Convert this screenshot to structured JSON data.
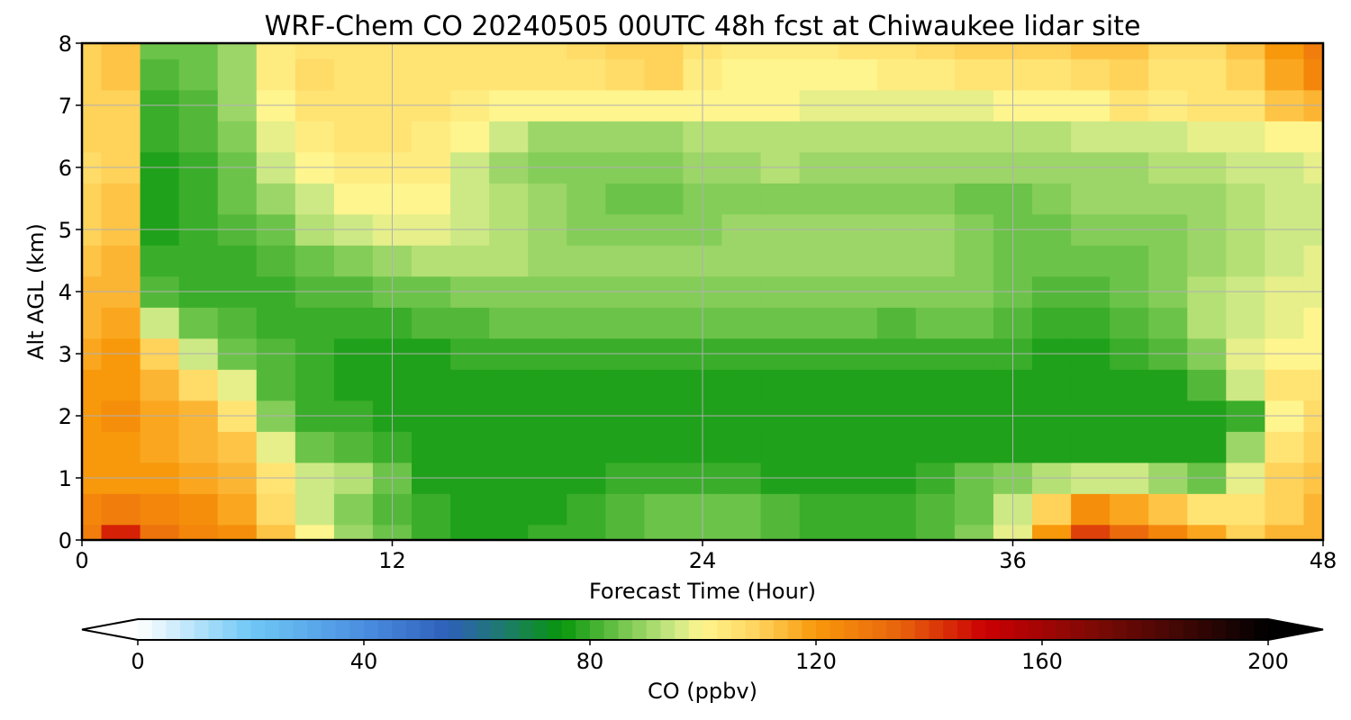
{
  "chart_data": {
    "type": "heatmap",
    "title": "WRF-Chem CO  20240505 00UTC 48h fcst at Chiwaukee lidar site",
    "xlabel": "Forecast Time (Hour)",
    "ylabel": "Alt AGL (km)",
    "xlim": [
      0,
      48
    ],
    "ylim": [
      0,
      8
    ],
    "xticks": [
      0,
      12,
      24,
      36,
      48
    ],
    "yticks": [
      0,
      1,
      2,
      3,
      4,
      5,
      6,
      7,
      8
    ],
    "grid": true,
    "x": [
      0,
      1.5,
      3,
      4.5,
      6,
      7.5,
      9,
      10.5,
      12,
      13.5,
      15,
      16.5,
      18,
      19.5,
      21,
      22.5,
      24,
      25.5,
      27,
      28.5,
      30,
      31.5,
      33,
      34.5,
      36,
      37.5,
      39,
      40.5,
      42,
      43.5,
      45,
      46.5,
      48
    ],
    "y": [
      0,
      0.5,
      1,
      1.5,
      2,
      2.5,
      3,
      3.5,
      4,
      4.5,
      5,
      5.5,
      6,
      6.5,
      7,
      7.5,
      8
    ],
    "values": [
      [
        128,
        145,
        130,
        125,
        122,
        112,
        100,
        90,
        84,
        80,
        78,
        77,
        79,
        80,
        82,
        84,
        85,
        84,
        82,
        80,
        79,
        80,
        83,
        88,
        98,
        120,
        140,
        132,
        124,
        118,
        110,
        114,
        116
      ],
      [
        124,
        128,
        125,
        122,
        118,
        108,
        96,
        88,
        82,
        79,
        77,
        77,
        78,
        80,
        82,
        84,
        85,
        84,
        82,
        80,
        79,
        79,
        82,
        86,
        94,
        110,
        122,
        118,
        112,
        105,
        104,
        110,
        114
      ],
      [
        120,
        121,
        120,
        118,
        114,
        104,
        96,
        92,
        84,
        78,
        77,
        77,
        77,
        78,
        79,
        80,
        80,
        79,
        78,
        77,
        77,
        78,
        80,
        84,
        88,
        92,
        95,
        94,
        90,
        86,
        98,
        110,
        112
      ],
      [
        120,
        121,
        118,
        116,
        112,
        98,
        86,
        82,
        80,
        78,
        77,
        77,
        77,
        77,
        77,
        77,
        77,
        77,
        77,
        77,
        77,
        77,
        77,
        78,
        78,
        78,
        78,
        78,
        78,
        78,
        90,
        106,
        110
      ],
      [
        120,
        122,
        118,
        114,
        106,
        88,
        80,
        79,
        78,
        77,
        77,
        77,
        77,
        77,
        77,
        77,
        77,
        77,
        77,
        77,
        77,
        77,
        77,
        77,
        77,
        77,
        77,
        77,
        77,
        78,
        80,
        100,
        108
      ],
      [
        119,
        121,
        116,
        108,
        98,
        83,
        79,
        78,
        77,
        77,
        77,
        77,
        77,
        77,
        77,
        77,
        77,
        77,
        77,
        77,
        77,
        77,
        77,
        77,
        77,
        77,
        77,
        77,
        78,
        82,
        94,
        104,
        104
      ],
      [
        118,
        120,
        110,
        96,
        86,
        82,
        79,
        78,
        77,
        78,
        79,
        80,
        80,
        80,
        80,
        80,
        80,
        80,
        80,
        80,
        80,
        80,
        80,
        80,
        79,
        78,
        78,
        79,
        82,
        88,
        97,
        100,
        101
      ],
      [
        116,
        118,
        94,
        84,
        82,
        80,
        79,
        79,
        80,
        82,
        83,
        84,
        84,
        84,
        84,
        84,
        84,
        84,
        84,
        84,
        84,
        83,
        84,
        84,
        82,
        80,
        80,
        82,
        86,
        92,
        96,
        98,
        99
      ],
      [
        114,
        116,
        82,
        80,
        80,
        79,
        82,
        83,
        84,
        86,
        88,
        88,
        88,
        88,
        88,
        88,
        88,
        88,
        88,
        88,
        88,
        88,
        88,
        87,
        85,
        83,
        82,
        84,
        88,
        92,
        95,
        97,
        98
      ],
      [
        112,
        114,
        80,
        79,
        80,
        82,
        86,
        88,
        90,
        92,
        93,
        92,
        91,
        91,
        91,
        90,
        90,
        90,
        90,
        90,
        90,
        90,
        90,
        88,
        86,
        84,
        84,
        86,
        88,
        90,
        93,
        96,
        97
      ],
      [
        110,
        112,
        78,
        80,
        82,
        86,
        92,
        95,
        97,
        97,
        95,
        93,
        90,
        88,
        87,
        87,
        88,
        89,
        89,
        89,
        89,
        90,
        89,
        87,
        85,
        86,
        87,
        88,
        88,
        89,
        92,
        95,
        96
      ],
      [
        110,
        112,
        78,
        80,
        84,
        90,
        96,
        99,
        101,
        100,
        96,
        92,
        89,
        87,
        86,
        86,
        87,
        88,
        88,
        88,
        88,
        88,
        87,
        86,
        86,
        88,
        89,
        89,
        89,
        90,
        92,
        95,
        96
      ],
      [
        108,
        110,
        78,
        81,
        86,
        94,
        100,
        102,
        103,
        102,
        96,
        91,
        88,
        87,
        87,
        88,
        90,
        91,
        92,
        91,
        90,
        89,
        89,
        89,
        90,
        90,
        90,
        91,
        92,
        93,
        94,
        96,
        97
      ],
      [
        110,
        111,
        79,
        82,
        88,
        97,
        102,
        104,
        104,
        103,
        99,
        94,
        91,
        90,
        90,
        91,
        92,
        93,
        93,
        93,
        93,
        92,
        92,
        92,
        93,
        93,
        94,
        95,
        96,
        97,
        98,
        99,
        100
      ],
      [
        110,
        111,
        80,
        83,
        89,
        100,
        106,
        106,
        105,
        104,
        102,
        100,
        99,
        99,
        100,
        101,
        101,
        100,
        99,
        98,
        98,
        98,
        98,
        98,
        99,
        99,
        101,
        104,
        103,
        104,
        106,
        112,
        116
      ],
      [
        110,
        112,
        82,
        84,
        90,
        102,
        108,
        106,
        105,
        105,
        104,
        104,
        104,
        106,
        108,
        110,
        103,
        101,
        101,
        101,
        101,
        102,
        103,
        104,
        104,
        105,
        108,
        110,
        106,
        106,
        110,
        118,
        124
      ],
      [
        110,
        112,
        84,
        85,
        90,
        102,
        106,
        104,
        104,
        104,
        104,
        104,
        105,
        107,
        109,
        110,
        104,
        102,
        102,
        103,
        104,
        106,
        108,
        110,
        110,
        110,
        112,
        112,
        108,
        108,
        112,
        120,
        128
      ]
    ],
    "colorbar": {
      "label": "CO  (ppbv)",
      "min": 0,
      "max": 200,
      "ticks": [
        0,
        40,
        80,
        120,
        160,
        200
      ],
      "extend": "both",
      "stops": [
        {
          "v": 0,
          "color": "#ffffff"
        },
        {
          "v": 20,
          "color": "#6fc8f5"
        },
        {
          "v": 40,
          "color": "#4a8ee0"
        },
        {
          "v": 55,
          "color": "#2e5fb8"
        },
        {
          "v": 65,
          "color": "#1d7c6a"
        },
        {
          "v": 75,
          "color": "#07960b"
        },
        {
          "v": 85,
          "color": "#6cc34a"
        },
        {
          "v": 95,
          "color": "#cde985"
        },
        {
          "v": 100,
          "color": "#fff58e"
        },
        {
          "v": 110,
          "color": "#ffd25a"
        },
        {
          "v": 120,
          "color": "#f8980b"
        },
        {
          "v": 135,
          "color": "#e8620c"
        },
        {
          "v": 150,
          "color": "#cb0003"
        },
        {
          "v": 170,
          "color": "#7a0a05"
        },
        {
          "v": 190,
          "color": "#2a0504"
        },
        {
          "v": 200,
          "color": "#000000"
        }
      ],
      "over_color": "#000000",
      "under_color": "#ffffff"
    }
  }
}
